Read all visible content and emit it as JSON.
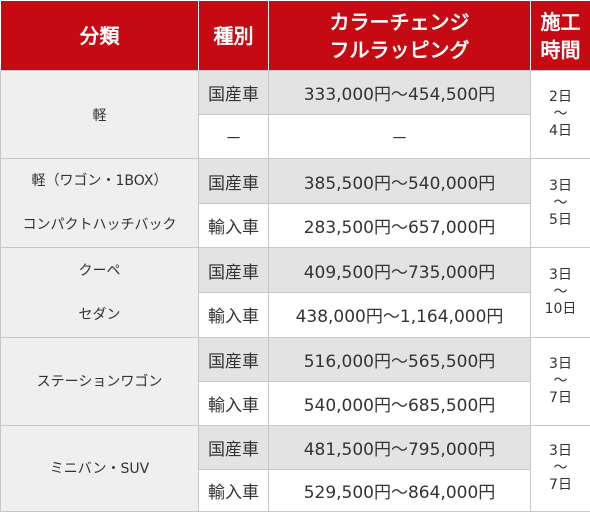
{
  "header": {
    "category": "分類",
    "type": "種別",
    "service_line1": "カラーチェンジ",
    "service_line2": "フルラッピング",
    "duration_line1": "施工",
    "duration_line2": "時間"
  },
  "rows": [
    {
      "category": [
        "軽"
      ],
      "entries": [
        {
          "type": "国産車",
          "price": "333,000円～454,500円"
        },
        {
          "type": "－",
          "price": "－"
        }
      ],
      "days": [
        "2日",
        "～",
        "4日"
      ]
    },
    {
      "category": [
        "軽（ワゴン・1BOX）",
        "コンパクトハッチバック"
      ],
      "entries": [
        {
          "type": "国産車",
          "price": "385,500円～540,000円"
        },
        {
          "type": "輸入車",
          "price": "283,500円～657,000円"
        }
      ],
      "days": [
        "3日",
        "～",
        "5日"
      ]
    },
    {
      "category": [
        "クーペ",
        "セダン"
      ],
      "entries": [
        {
          "type": "国産車",
          "price": "409,500円～735,000円"
        },
        {
          "type": "輸入車",
          "price": "438,000円～1,164,000円"
        }
      ],
      "days": [
        "3日",
        "～",
        "10日"
      ]
    },
    {
      "category": [
        "ステーションワゴン"
      ],
      "entries": [
        {
          "type": "国産車",
          "price": "516,000円～565,500円"
        },
        {
          "type": "輸入車",
          "price": "540,000円～685,500円"
        }
      ],
      "days": [
        "3日",
        "～",
        "7日"
      ]
    },
    {
      "category": [
        "ミニバン・SUV"
      ],
      "entries": [
        {
          "type": "国産車",
          "price": "481,500円～795,000円"
        },
        {
          "type": "輸入車",
          "price": "529,500円～864,000円"
        }
      ],
      "days": [
        "3日",
        "～",
        "7日"
      ]
    }
  ],
  "colors": {
    "header_bg": "#c60a14",
    "header_text": "#ffffff",
    "category_bg": "#efefef",
    "highlight_row_bg": "#e3e3e3",
    "border": "#c7c7c7"
  }
}
